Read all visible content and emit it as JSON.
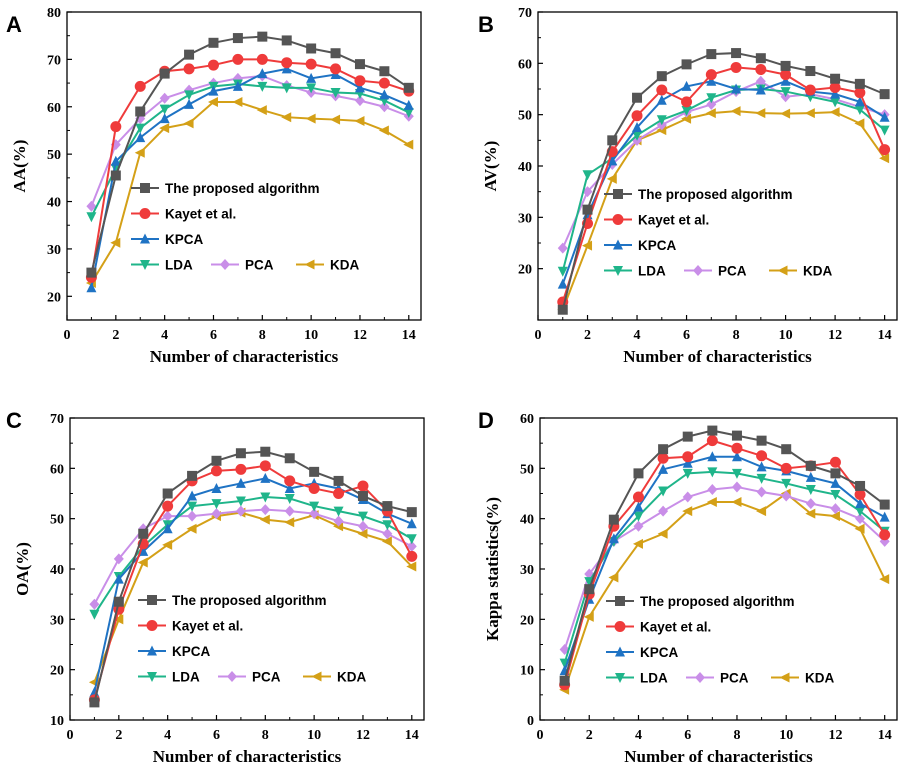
{
  "series_styles": [
    {
      "name": "The proposed algorithm",
      "color": "#555555",
      "marker": "square"
    },
    {
      "name": "Kayet et al.",
      "color": "#ef3b3b",
      "marker": "circle"
    },
    {
      "name": "KPCA",
      "color": "#1f73c4",
      "marker": "triangle-up"
    },
    {
      "name": "LDA",
      "color": "#1fb58a",
      "marker": "triangle-down"
    },
    {
      "name": "PCA",
      "color": "#c98ee8",
      "marker": "diamond"
    },
    {
      "name": "KDA",
      "color": "#d4a017",
      "marker": "triangle-left"
    }
  ],
  "chart_data": [
    {
      "panel": "A",
      "type": "line",
      "xlabel": "Number of characteristics",
      "ylabel": "AA(%)",
      "xlim": [
        0,
        14.5
      ],
      "ylim": [
        15,
        80
      ],
      "xticks": [
        0,
        2,
        4,
        6,
        8,
        10,
        12,
        14
      ],
      "yticks": [
        20,
        30,
        40,
        50,
        60,
        70,
        80
      ],
      "x": [
        1,
        2,
        3,
        4,
        5,
        6,
        7,
        8,
        9,
        10,
        11,
        12,
        13,
        14
      ],
      "series": [
        {
          "name": "The proposed algorithm",
          "values": [
            25,
            45.5,
            59,
            67,
            71,
            73.5,
            74.5,
            74.8,
            74,
            72.3,
            71.3,
            69,
            67.5,
            64
          ]
        },
        {
          "name": "Kayet et al.",
          "values": [
            24,
            55.8,
            64.3,
            67.5,
            68,
            68.8,
            70,
            70,
            69.3,
            69,
            68,
            65.5,
            65,
            63.3
          ]
        },
        {
          "name": "KPCA",
          "values": [
            21.8,
            48.5,
            53.5,
            57.5,
            60.5,
            63.3,
            64.3,
            67,
            68,
            66,
            66.8,
            64,
            62.5,
            60.3
          ]
        },
        {
          "name": "LDA",
          "values": [
            36.8,
            47,
            55.5,
            59.5,
            62.5,
            64.3,
            64.8,
            64.3,
            64,
            64,
            63,
            62.8,
            61.3,
            58.8
          ]
        },
        {
          "name": "PCA",
          "values": [
            39,
            52,
            57.5,
            61.8,
            63.5,
            65,
            66,
            66.5,
            64.5,
            63,
            62.3,
            61.3,
            60,
            58
          ]
        },
        {
          "name": "KDA",
          "values": [
            22.8,
            31.3,
            50.3,
            55.5,
            56.5,
            61,
            61,
            59.3,
            57.8,
            57.5,
            57.3,
            57,
            55,
            52
          ]
        }
      ]
    },
    {
      "panel": "B",
      "type": "line",
      "xlabel": "Number of characteristics",
      "ylabel": "AV(%)",
      "xlim": [
        0,
        14.5
      ],
      "ylim": [
        10,
        70
      ],
      "xticks": [
        0,
        2,
        4,
        6,
        8,
        10,
        12,
        14
      ],
      "yticks": [
        20,
        30,
        40,
        50,
        60,
        70
      ],
      "x": [
        1,
        2,
        3,
        4,
        5,
        6,
        7,
        8,
        9,
        10,
        11,
        12,
        13,
        14
      ],
      "series": [
        {
          "name": "The proposed algorithm",
          "values": [
            12,
            31.5,
            45,
            53.3,
            57.5,
            59.8,
            61.8,
            62,
            61,
            59.5,
            58.5,
            57,
            56,
            54
          ]
        },
        {
          "name": "Kayet et al.",
          "values": [
            13.5,
            28.8,
            42.8,
            49.8,
            54.8,
            52.5,
            57.8,
            59.2,
            58.8,
            57.8,
            54.8,
            55.3,
            54.3,
            43.2
          ]
        },
        {
          "name": "KPCA",
          "values": [
            17,
            30.5,
            41,
            47.5,
            52.8,
            55.5,
            56.5,
            55,
            54.8,
            56.5,
            54.5,
            54,
            52.5,
            49.5
          ]
        },
        {
          "name": "LDA",
          "values": [
            19.5,
            38.3,
            41.5,
            46,
            49,
            50.8,
            53.3,
            54.8,
            55,
            54.5,
            53.5,
            52.5,
            51,
            47
          ]
        },
        {
          "name": "PCA",
          "values": [
            24,
            35,
            40.3,
            45,
            48,
            50.5,
            52,
            54.5,
            56.5,
            53.5,
            54,
            53,
            51.5,
            50
          ]
        },
        {
          "name": "KDA",
          "values": [
            12,
            24.5,
            37.5,
            45,
            47,
            49.2,
            50.3,
            50.7,
            50.3,
            50.2,
            50.3,
            50.5,
            48.3,
            41.5
          ]
        }
      ]
    },
    {
      "panel": "C",
      "type": "line",
      "xlabel": "Number of characteristics",
      "ylabel": "OA(%)",
      "xlim": [
        0,
        14.5
      ],
      "ylim": [
        10,
        70
      ],
      "xticks": [
        0,
        2,
        4,
        6,
        8,
        10,
        12,
        14
      ],
      "yticks": [
        10,
        20,
        30,
        40,
        50,
        60,
        70
      ],
      "x": [
        1,
        2,
        3,
        4,
        5,
        6,
        7,
        8,
        9,
        10,
        11,
        12,
        13,
        14
      ],
      "series": [
        {
          "name": "The proposed algorithm",
          "values": [
            13.5,
            33.5,
            47,
            55,
            58.5,
            61.5,
            63,
            63.3,
            62,
            59.3,
            57.5,
            54.5,
            52.5,
            51.3
          ]
        },
        {
          "name": "Kayet et al.",
          "values": [
            14,
            32,
            45,
            52.5,
            57.5,
            59.5,
            59.8,
            60.5,
            57.5,
            56,
            55,
            56.5,
            51.5,
            42.5
          ]
        },
        {
          "name": "KPCA",
          "values": [
            15.5,
            38,
            43.5,
            48,
            54.5,
            56,
            57,
            58,
            56,
            57,
            56,
            53.8,
            51,
            49
          ]
        },
        {
          "name": "LDA",
          "values": [
            31,
            38.5,
            44.5,
            48.8,
            52.5,
            53,
            53.5,
            54.3,
            54,
            52.5,
            51.5,
            50.5,
            48.8,
            46
          ]
        },
        {
          "name": "PCA",
          "values": [
            33,
            42,
            48,
            50.5,
            50.5,
            51,
            51.5,
            51.8,
            51.5,
            51,
            49.5,
            48.5,
            47,
            44.5
          ]
        },
        {
          "name": "KDA",
          "values": [
            17.5,
            30,
            41.3,
            44.8,
            48,
            50.5,
            51.2,
            49.8,
            49.3,
            50.7,
            48.5,
            47,
            45.5,
            40.5
          ]
        }
      ]
    },
    {
      "panel": "D",
      "type": "line",
      "xlabel": "Number of characteristics",
      "ylabel": "Kappa statistics(%)",
      "xlim": [
        0,
        14.5
      ],
      "ylim": [
        0,
        60
      ],
      "xticks": [
        0,
        2,
        4,
        6,
        8,
        10,
        12,
        14
      ],
      "yticks": [
        0,
        10,
        20,
        30,
        40,
        50,
        60
      ],
      "x": [
        1,
        2,
        3,
        4,
        5,
        6,
        7,
        8,
        9,
        10,
        11,
        12,
        13,
        14
      ],
      "series": [
        {
          "name": "The proposed algorithm",
          "values": [
            7.8,
            26,
            39.8,
            49,
            53.8,
            56.3,
            57.5,
            56.5,
            55.5,
            53.8,
            50.5,
            49,
            46.5,
            42.8
          ]
        },
        {
          "name": "Kayet et al.",
          "values": [
            7,
            25,
            38.5,
            44.3,
            52,
            52.3,
            55.5,
            54,
            52.5,
            50,
            50.5,
            51.2,
            44.8,
            36.8
          ]
        },
        {
          "name": "KPCA",
          "values": [
            9.8,
            24,
            36,
            42.3,
            49.8,
            51,
            52.3,
            52.3,
            50.3,
            49.5,
            48.2,
            47,
            43,
            40.3
          ]
        },
        {
          "name": "LDA",
          "values": [
            11.3,
            27.5,
            35.5,
            40.5,
            45.5,
            49,
            49.3,
            49,
            48,
            47,
            45.8,
            44.8,
            41.5,
            37.5
          ]
        },
        {
          "name": "PCA",
          "values": [
            14,
            29,
            35.5,
            38.5,
            41.5,
            44.3,
            45.8,
            46.3,
            45.3,
            44.5,
            43,
            42,
            40,
            35.5
          ]
        },
        {
          "name": "KDA",
          "values": [
            6,
            20.5,
            28.3,
            35,
            37,
            41.5,
            43.3,
            43.3,
            41.5,
            45,
            41,
            40.5,
            38,
            28
          ]
        }
      ]
    }
  ]
}
